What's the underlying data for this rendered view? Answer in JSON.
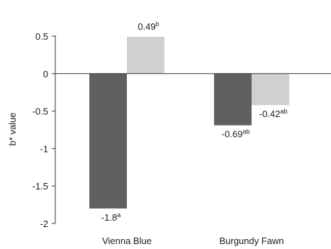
{
  "chart_data": {
    "type": "bar",
    "title": "",
    "xlabel": "",
    "ylabel": "b* value",
    "ylim": [
      -2,
      0.5
    ],
    "yticks": [
      0.5,
      0,
      -0.5,
      -1,
      -1.5,
      -2
    ],
    "ytick_labels": [
      "0.5",
      "0",
      "-0.5",
      "-1",
      "-1.5",
      "-2"
    ],
    "categories": [
      "Vienna Blue",
      "Burgundy Fawn"
    ],
    "grid": false,
    "legend": "none",
    "series": [
      {
        "color": "#606060",
        "values": [
          -1.8,
          -0.69
        ],
        "labels": [
          {
            "value": "-1.8",
            "sup": "a"
          },
          {
            "value": "-0.69",
            "sup": "ab"
          }
        ]
      },
      {
        "color": "#d0d0d0",
        "values": [
          0.49,
          -0.42
        ],
        "labels": [
          {
            "value": "0.49",
            "sup": "b"
          },
          {
            "value": "-0.42",
            "sup": "ab"
          }
        ]
      }
    ]
  }
}
